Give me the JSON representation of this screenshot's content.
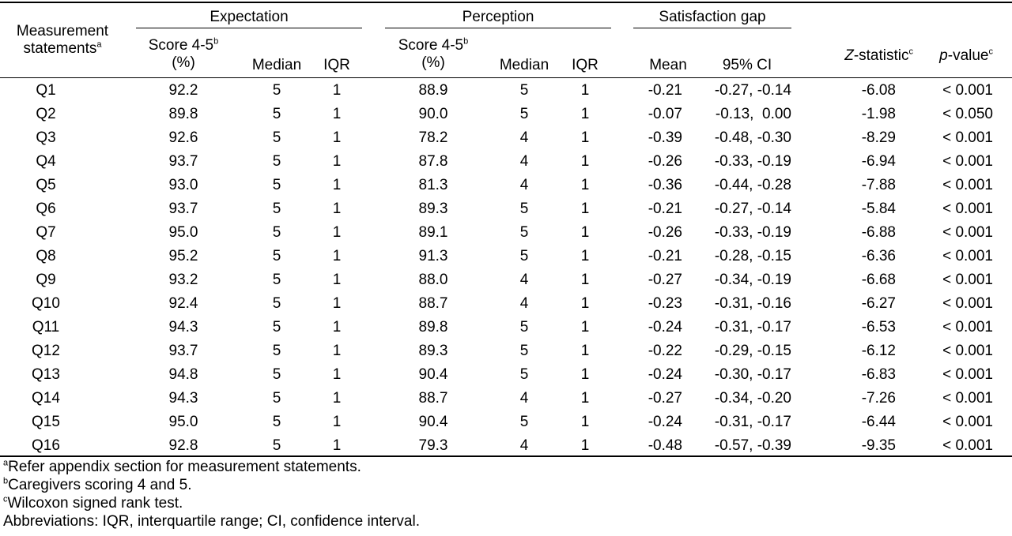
{
  "header": {
    "measurement_statements": "Measurement",
    "measurement_statements_line2": "statements",
    "measurement_statements_sup": "a",
    "expectation": "Expectation",
    "perception": "Perception",
    "satisfaction_gap": "Satisfaction gap",
    "score_line1": "Score 4-5",
    "score_sup": "b",
    "score_line2": "(%)",
    "median": "Median",
    "iqr": "IQR",
    "mean": "Mean",
    "ci": "95% CI",
    "z_stat_italic": "Z",
    "z_stat_rest": "-statistic",
    "z_stat_sup": "c",
    "p_value_italic": "p",
    "p_value_rest": "-value",
    "p_value_sup": "c"
  },
  "rows": [
    {
      "q": "Q1",
      "exp_score": "92.2",
      "exp_median": "5",
      "exp_iqr": "1",
      "per_score": "88.9",
      "per_median": "5",
      "per_iqr": "1",
      "mean": "-0.21",
      "ci": "-0.27, -0.14",
      "z": "-6.08",
      "p": "< 0.001"
    },
    {
      "q": "Q2",
      "exp_score": "89.8",
      "exp_median": "5",
      "exp_iqr": "1",
      "per_score": "90.0",
      "per_median": "5",
      "per_iqr": "1",
      "mean": "-0.07",
      "ci": "-0.13,  0.00",
      "z": "-1.98",
      "p": "< 0.050"
    },
    {
      "q": "Q3",
      "exp_score": "92.6",
      "exp_median": "5",
      "exp_iqr": "1",
      "per_score": "78.2",
      "per_median": "4",
      "per_iqr": "1",
      "mean": "-0.39",
      "ci": "-0.48, -0.30",
      "z": "-8.29",
      "p": "< 0.001"
    },
    {
      "q": "Q4",
      "exp_score": "93.7",
      "exp_median": "5",
      "exp_iqr": "1",
      "per_score": "87.8",
      "per_median": "4",
      "per_iqr": "1",
      "mean": "-0.26",
      "ci": "-0.33, -0.19",
      "z": "-6.94",
      "p": "< 0.001"
    },
    {
      "q": "Q5",
      "exp_score": "93.0",
      "exp_median": "5",
      "exp_iqr": "1",
      "per_score": "81.3",
      "per_median": "4",
      "per_iqr": "1",
      "mean": "-0.36",
      "ci": "-0.44, -0.28",
      "z": "-7.88",
      "p": "< 0.001"
    },
    {
      "q": "Q6",
      "exp_score": "93.7",
      "exp_median": "5",
      "exp_iqr": "1",
      "per_score": "89.3",
      "per_median": "5",
      "per_iqr": "1",
      "mean": "-0.21",
      "ci": "-0.27, -0.14",
      "z": "-5.84",
      "p": "< 0.001"
    },
    {
      "q": "Q7",
      "exp_score": "95.0",
      "exp_median": "5",
      "exp_iqr": "1",
      "per_score": "89.1",
      "per_median": "5",
      "per_iqr": "1",
      "mean": "-0.26",
      "ci": "-0.33, -0.19",
      "z": "-6.88",
      "p": "< 0.001"
    },
    {
      "q": "Q8",
      "exp_score": "95.2",
      "exp_median": "5",
      "exp_iqr": "1",
      "per_score": "91.3",
      "per_median": "5",
      "per_iqr": "1",
      "mean": "-0.21",
      "ci": "-0.28, -0.15",
      "z": "-6.36",
      "p": "< 0.001"
    },
    {
      "q": "Q9",
      "exp_score": "93.2",
      "exp_median": "5",
      "exp_iqr": "1",
      "per_score": "88.0",
      "per_median": "4",
      "per_iqr": "1",
      "mean": "-0.27",
      "ci": "-0.34, -0.19",
      "z": "-6.68",
      "p": "< 0.001"
    },
    {
      "q": "Q10",
      "exp_score": "92.4",
      "exp_median": "5",
      "exp_iqr": "1",
      "per_score": "88.7",
      "per_median": "4",
      "per_iqr": "1",
      "mean": "-0.23",
      "ci": "-0.31, -0.16",
      "z": "-6.27",
      "p": "< 0.001"
    },
    {
      "q": "Q11",
      "exp_score": "94.3",
      "exp_median": "5",
      "exp_iqr": "1",
      "per_score": "89.8",
      "per_median": "5",
      "per_iqr": "1",
      "mean": "-0.24",
      "ci": "-0.31, -0.17",
      "z": "-6.53",
      "p": "< 0.001"
    },
    {
      "q": "Q12",
      "exp_score": "93.7",
      "exp_median": "5",
      "exp_iqr": "1",
      "per_score": "89.3",
      "per_median": "5",
      "per_iqr": "1",
      "mean": "-0.22",
      "ci": "-0.29, -0.15",
      "z": "-6.12",
      "p": "< 0.001"
    },
    {
      "q": "Q13",
      "exp_score": "94.8",
      "exp_median": "5",
      "exp_iqr": "1",
      "per_score": "90.4",
      "per_median": "5",
      "per_iqr": "1",
      "mean": "-0.24",
      "ci": "-0.30, -0.17",
      "z": "-6.83",
      "p": "< 0.001"
    },
    {
      "q": "Q14",
      "exp_score": "94.3",
      "exp_median": "5",
      "exp_iqr": "1",
      "per_score": "88.7",
      "per_median": "4",
      "per_iqr": "1",
      "mean": "-0.27",
      "ci": "-0.34, -0.20",
      "z": "-7.26",
      "p": "< 0.001"
    },
    {
      "q": "Q15",
      "exp_score": "95.0",
      "exp_median": "5",
      "exp_iqr": "1",
      "per_score": "90.4",
      "per_median": "5",
      "per_iqr": "1",
      "mean": "-0.24",
      "ci": "-0.31, -0.17",
      "z": "-6.44",
      "p": "< 0.001"
    },
    {
      "q": "Q16",
      "exp_score": "92.8",
      "exp_median": "5",
      "exp_iqr": "1",
      "per_score": "79.3",
      "per_median": "4",
      "per_iqr": "1",
      "mean": "-0.48",
      "ci": "-0.57, -0.39",
      "z": "-9.35",
      "p": "< 0.001"
    }
  ],
  "footnotes": [
    {
      "mark": "a",
      "text": "Refer appendix section for measurement statements."
    },
    {
      "mark": "b",
      "text": "Caregivers scoring 4 and 5."
    },
    {
      "mark": "c",
      "text": "Wilcoxon signed rank test."
    },
    {
      "mark": "",
      "text": "Abbreviations: IQR, interquartile range; CI, confidence interval."
    }
  ]
}
